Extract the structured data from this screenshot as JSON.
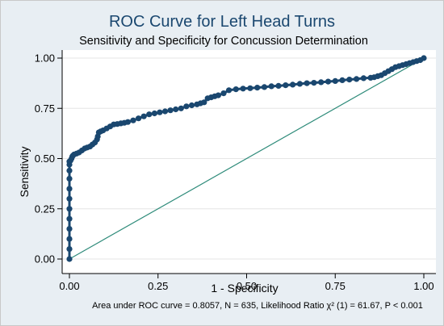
{
  "chart_data": {
    "type": "line",
    "title": "ROC Curve for Left Head Turns",
    "subtitle": "Sensitivity and Specificity for Concussion Determination",
    "xlabel": "1 - Specificity",
    "ylabel": "Sensitivity",
    "note": "Area under ROC curve = 0.8057, N = 635, Likelihood Ratio χ² (1) = 61.67, P < 0.001",
    "xlim": [
      0,
      1
    ],
    "ylim": [
      0,
      1
    ],
    "x_ticks": [
      "0.00",
      "0.25",
      "0.50",
      "0.75",
      "1.00"
    ],
    "y_ticks": [
      "0.00",
      "0.25",
      "0.50",
      "0.75",
      "1.00"
    ],
    "grid": true,
    "colors": {
      "curve": "#1a476f",
      "reference": "#2e8b7a",
      "plot_bg": "#ffffff",
      "outer_bg": "#e8eef3",
      "grid": "#e6e6e6",
      "title": "#1a476f"
    },
    "series": [
      {
        "style": "connected-markers",
        "x": [
          0.0,
          0.0,
          0.0,
          0.0,
          0.0,
          0.0,
          0.0,
          0.0,
          0.0,
          0.0,
          0.0,
          0.0,
          0.003,
          0.006,
          0.008,
          0.01,
          0.013,
          0.02,
          0.027,
          0.035,
          0.043,
          0.05,
          0.058,
          0.065,
          0.072,
          0.078,
          0.08,
          0.083,
          0.088,
          0.095,
          0.105,
          0.115,
          0.125,
          0.135,
          0.145,
          0.155,
          0.165,
          0.18,
          0.195,
          0.21,
          0.225,
          0.24,
          0.255,
          0.27,
          0.285,
          0.3,
          0.315,
          0.33,
          0.345,
          0.36,
          0.37,
          0.38,
          0.39,
          0.4,
          0.41,
          0.42,
          0.435,
          0.45,
          0.47,
          0.49,
          0.51,
          0.53,
          0.55,
          0.57,
          0.59,
          0.61,
          0.63,
          0.65,
          0.67,
          0.69,
          0.71,
          0.73,
          0.75,
          0.77,
          0.79,
          0.81,
          0.83,
          0.85,
          0.86,
          0.87,
          0.88,
          0.89,
          0.9,
          0.91,
          0.92,
          0.93,
          0.94,
          0.95,
          0.96,
          0.97,
          0.98,
          0.99,
          1.0
        ],
        "y": [
          0.0,
          0.05,
          0.1,
          0.15,
          0.2,
          0.25,
          0.3,
          0.35,
          0.4,
          0.44,
          0.47,
          0.485,
          0.49,
          0.5,
          0.51,
          0.515,
          0.52,
          0.525,
          0.53,
          0.54,
          0.55,
          0.555,
          0.56,
          0.57,
          0.58,
          0.595,
          0.61,
          0.63,
          0.635,
          0.64,
          0.65,
          0.66,
          0.67,
          0.672,
          0.675,
          0.678,
          0.682,
          0.69,
          0.7,
          0.71,
          0.72,
          0.725,
          0.73,
          0.735,
          0.74,
          0.745,
          0.75,
          0.76,
          0.765,
          0.77,
          0.775,
          0.78,
          0.8,
          0.805,
          0.81,
          0.815,
          0.825,
          0.84,
          0.845,
          0.848,
          0.85,
          0.853,
          0.856,
          0.86,
          0.862,
          0.865,
          0.868,
          0.872,
          0.875,
          0.877,
          0.88,
          0.883,
          0.886,
          0.89,
          0.893,
          0.896,
          0.9,
          0.902,
          0.905,
          0.91,
          0.915,
          0.925,
          0.935,
          0.945,
          0.955,
          0.96,
          0.965,
          0.97,
          0.975,
          0.98,
          0.985,
          0.99,
          1.0
        ]
      },
      {
        "style": "reference-line",
        "x": [
          0,
          1
        ],
        "y": [
          0,
          1
        ]
      }
    ]
  }
}
